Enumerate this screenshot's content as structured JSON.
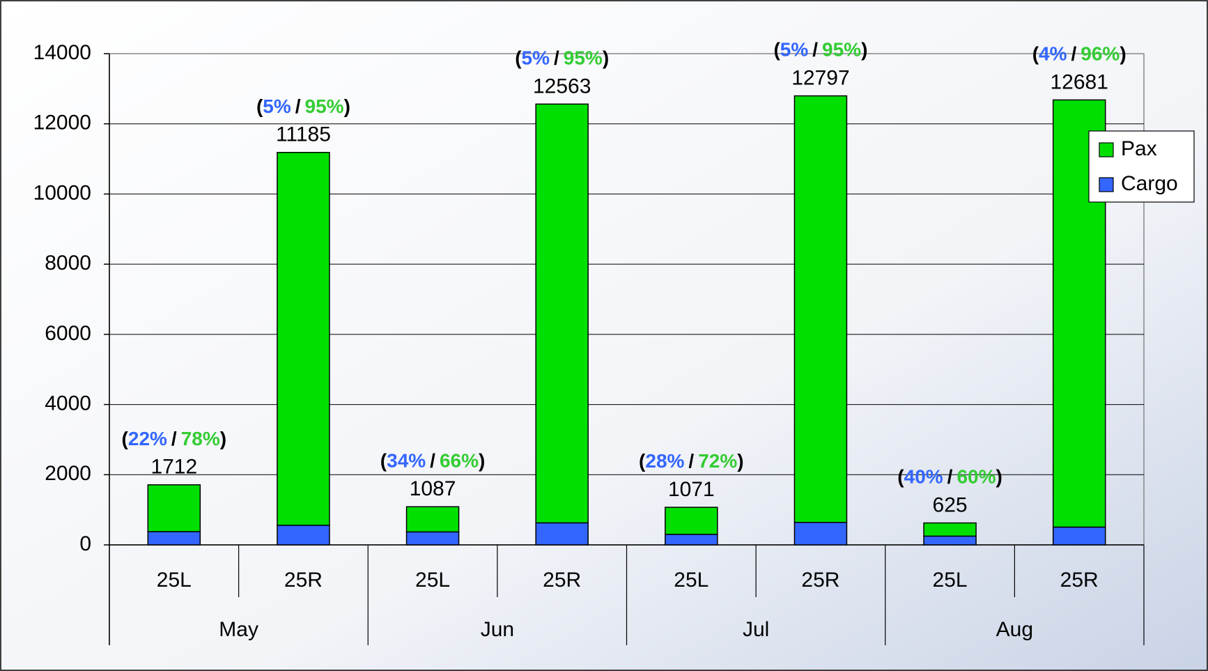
{
  "chart_data": {
    "type": "stacked_bar",
    "categories": [
      "25L",
      "25R",
      "25L",
      "25R",
      "25L",
      "25R",
      "25L",
      "25R"
    ],
    "groups": [
      "May",
      "Jun",
      "Jul",
      "Aug"
    ],
    "series": [
      {
        "name": "Cargo",
        "color": "#3366ff",
        "values": [
          377,
          559,
          370,
          628,
          300,
          640,
          250,
          507
        ]
      },
      {
        "name": "Pax",
        "color": "#00e000",
        "values": [
          1335,
          10626,
          717,
          11935,
          771,
          12157,
          375,
          12174
        ]
      }
    ],
    "totals": [
      1712,
      11185,
      1087,
      12563,
      1071,
      12797,
      625,
      12681
    ],
    "share_labels": [
      [
        "(",
        "22%",
        "/",
        "78%",
        ")"
      ],
      [
        "(",
        "5%",
        "/",
        "95%",
        ")"
      ],
      [
        "(",
        "34%",
        "/",
        "66%",
        ")"
      ],
      [
        "(",
        "5%",
        "/",
        "95%",
        ")"
      ],
      [
        "(",
        "28%",
        "/",
        "72%",
        ")"
      ],
      [
        "(",
        "5%",
        "/",
        "95%",
        ")"
      ],
      [
        "(",
        "40%",
        "/",
        "60%",
        ")"
      ],
      [
        "(",
        "4%",
        "/",
        "96%",
        ")"
      ]
    ],
    "ylim": [
      0,
      14000
    ],
    "yticks": [
      0,
      2000,
      4000,
      6000,
      8000,
      10000,
      12000,
      14000
    ],
    "grid": true,
    "legend": "right"
  }
}
